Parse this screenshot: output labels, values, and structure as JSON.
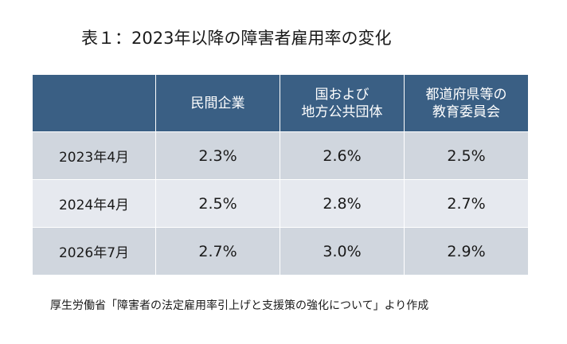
{
  "title": "表１：2023年以降の障害者雇用率の変化",
  "source": "厚生労働省「障害者の法定雇用率引上げと支援策の強化について」より作成",
  "colors": {
    "header_bg": "#3a5f84",
    "row_odd_bg": "#d0d6de",
    "row_even_bg": "#e6e9ef"
  },
  "chart_data": {
    "type": "table",
    "title": "表１：2023年以降の障害者雇用率の変化",
    "columns": [
      {
        "name": "民間企業",
        "lines": [
          "民間企業"
        ]
      },
      {
        "name": "国および地方公共団体",
        "lines": [
          "国および",
          "地方公共団体"
        ]
      },
      {
        "name": "都道府県等の教育委員会",
        "lines": [
          "都道府県等の",
          "教育委員会"
        ]
      }
    ],
    "rows": [
      {
        "label": "2023年4月",
        "values": [
          "2.3%",
          "2.6%",
          "2.5%"
        ]
      },
      {
        "label": "2024年4月",
        "values": [
          "2.5%",
          "2.8%",
          "2.7%"
        ]
      },
      {
        "label": "2026年7月",
        "values": [
          "2.7%",
          "3.0%",
          "2.9%"
        ]
      }
    ]
  }
}
